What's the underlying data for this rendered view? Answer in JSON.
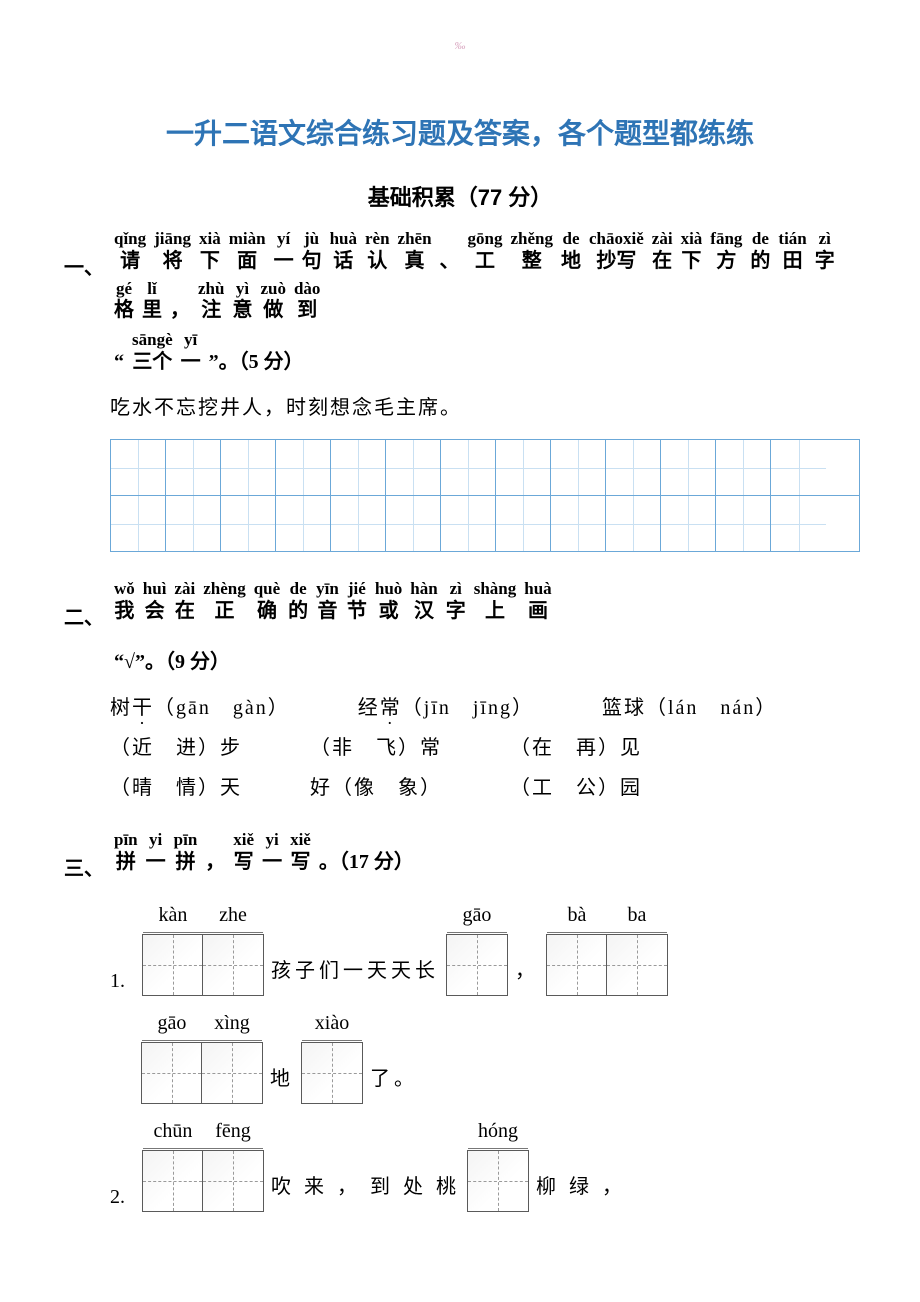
{
  "page_mark": "‰",
  "title": "一升二语文综合练习题及答案，各个题型都练练",
  "subtitle": "基础积累（77 分）",
  "colors": {
    "title_color": "#2e74b5",
    "grid_border": "#6ba8d8",
    "grid_inner": "#c9e0f2",
    "tzg_border": "#5a5a5a",
    "tzg_dash": "#9a9a9a",
    "text": "#000000",
    "bg": "#ffffff"
  },
  "section1": {
    "label": "一、",
    "ruby": [
      {
        "py": "qǐng",
        "hz": "请"
      },
      {
        "py": "jiāng",
        "hz": "将"
      },
      {
        "py": "xià",
        "hz": "下"
      },
      {
        "py": "miàn",
        "hz": "面"
      },
      {
        "py": "yí",
        "hz": "一"
      },
      {
        "py": "jù",
        "hz": "句"
      },
      {
        "py": "huà",
        "hz": "话"
      },
      {
        "py": "rèn",
        "hz": "认"
      },
      {
        "py": "zhēn",
        "hz": "真"
      },
      {
        "py": "",
        "hz": "、",
        "punct": true
      },
      {
        "py": "gōng",
        "hz": "工"
      },
      {
        "py": "zhěng",
        "hz": "整"
      },
      {
        "py": "de",
        "hz": "地"
      },
      {
        "py": "chāoxiě",
        "hz": "抄写",
        "double": true
      },
      {
        "py": "zài",
        "hz": "在"
      },
      {
        "py": "xià",
        "hz": "下"
      },
      {
        "py": "fāng",
        "hz": "方"
      },
      {
        "py": "de",
        "hz": "的"
      },
      {
        "py": "tián",
        "hz": "田"
      },
      {
        "py": "zì",
        "hz": "字"
      },
      {
        "py": "gé",
        "hz": "格"
      },
      {
        "py": "lǐ",
        "hz": "里"
      },
      {
        "py": "",
        "hz": "，",
        "punct": true
      },
      {
        "py": "zhù",
        "hz": "注"
      },
      {
        "py": "yì",
        "hz": "意"
      },
      {
        "py": "zuò",
        "hz": "做"
      },
      {
        "py": "dào",
        "hz": "到"
      }
    ],
    "tail_prefix": "“",
    "tail_ruby": [
      {
        "py": "sāngè",
        "hz": "三个",
        "double": true
      },
      {
        "py": "yī",
        "hz": "一"
      }
    ],
    "tail_suffix": "”。（5 分）",
    "sentence": "吃水不忘挖井人，时刻想念毛主席。",
    "grid_cols": 13,
    "grid_rows": 2
  },
  "section2": {
    "label": "二、",
    "ruby": [
      {
        "py": "wǒ",
        "hz": "我"
      },
      {
        "py": "huì",
        "hz": "会"
      },
      {
        "py": "zài",
        "hz": "在"
      },
      {
        "py": "zhèng",
        "hz": "正"
      },
      {
        "py": "què",
        "hz": "确"
      },
      {
        "py": "de",
        "hz": "的"
      },
      {
        "py": "yīn",
        "hz": "音"
      },
      {
        "py": "jié",
        "hz": "节"
      },
      {
        "py": "huò",
        "hz": "或"
      },
      {
        "py": "hàn",
        "hz": "汉"
      },
      {
        "py": "zì",
        "hz": "字"
      },
      {
        "py": "shàng",
        "hz": "上"
      },
      {
        "py": "huà",
        "hz": "画"
      }
    ],
    "tail": "“√”。（9 分）",
    "rows": [
      [
        {
          "pre": "树",
          "dot": "干",
          "post": "（gān　gàn）"
        },
        {
          "pre": "经",
          "dot": "常",
          "post": "（jīn　jīng）"
        },
        {
          "pre": "篮",
          "dot": "",
          "post": "球（lán　nán）"
        }
      ],
      [
        {
          "pre": "（近　进）步",
          "dot": "",
          "post": ""
        },
        {
          "pre": "（非　飞）常",
          "dot": "",
          "post": ""
        },
        {
          "pre": "（在　再）见",
          "dot": "",
          "post": ""
        }
      ],
      [
        {
          "pre": "（晴　情）天",
          "dot": "",
          "post": ""
        },
        {
          "pre": "好（像　象）",
          "dot": "",
          "post": ""
        },
        {
          "pre": "（工　公）园",
          "dot": "",
          "post": ""
        }
      ]
    ]
  },
  "section3": {
    "label": "三、",
    "ruby": [
      {
        "py": "pīn",
        "hz": "拼"
      },
      {
        "py": "yi",
        "hz": "一"
      },
      {
        "py": "pīn",
        "hz": "拼"
      },
      {
        "py": "",
        "hz": "，",
        "punct": true
      },
      {
        "py": "xiě",
        "hz": "写"
      },
      {
        "py": "yi",
        "hz": "一"
      },
      {
        "py": "xiě",
        "hz": "写"
      }
    ],
    "tail": "。（17 分）",
    "q1": {
      "num": "1.",
      "parts": [
        {
          "type": "box",
          "py": [
            "kàn",
            "zhe"
          ]
        },
        {
          "type": "text",
          "t": "孩子们一天天长"
        },
        {
          "type": "box",
          "py": [
            "gāo"
          ]
        },
        {
          "type": "text",
          "t": "，"
        },
        {
          "type": "box",
          "py": [
            "bà",
            "ba"
          ]
        }
      ],
      "line2": [
        {
          "type": "box",
          "py": [
            "gāo",
            "xìng"
          ]
        },
        {
          "type": "text",
          "t": "地"
        },
        {
          "type": "box",
          "py": [
            "xiào"
          ]
        },
        {
          "type": "text",
          "t": "了。"
        }
      ]
    },
    "q2": {
      "num": "2.",
      "parts": [
        {
          "type": "box",
          "py": [
            "chūn",
            "fēng"
          ]
        },
        {
          "type": "text",
          "t": "吹 来 ， 到 处 桃"
        },
        {
          "type": "box",
          "py": [
            "hóng"
          ]
        },
        {
          "type": "text",
          "t": "柳 绿 ，"
        }
      ]
    }
  }
}
